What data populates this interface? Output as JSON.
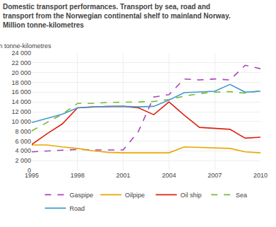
{
  "chart_data": {
    "type": "line",
    "title": "Domestic transport performances. Transport by sea, road and\ntransport from the Norwegian continental shelf to mainland Norway.\nMillion tonne-kilometres",
    "ylabel": "Million tonne-kilometres",
    "x": [
      1995,
      1996,
      1997,
      1998,
      1999,
      2000,
      2001,
      2002,
      2003,
      2004,
      2005,
      2006,
      2007,
      2008,
      2009,
      2010
    ],
    "series": [
      {
        "name": "Gaspipe",
        "color": "#AA44BB",
        "line_style": "dashed",
        "values": [
          3800,
          4000,
          4200,
          4300,
          4200,
          4150,
          4200,
          8000,
          15000,
          15500,
          18700,
          18500,
          18700,
          18500,
          21500,
          20800
        ]
      },
      {
        "name": "Oilpipe",
        "color": "#E8A800",
        "line_style": "solid",
        "values": [
          5200,
          5200,
          4800,
          4500,
          4000,
          3700,
          3600,
          3600,
          3600,
          3600,
          4800,
          4700,
          4600,
          4500,
          3800,
          3600
        ]
      },
      {
        "name": "Oil ship",
        "color": "#DD2211",
        "line_style": "solid",
        "values": [
          5300,
          7500,
          9500,
          12800,
          13000,
          13100,
          13100,
          12800,
          11400,
          14000,
          11300,
          8800,
          8600,
          8400,
          6600,
          6800
        ]
      },
      {
        "name": "Sea",
        "color": "#77BB33",
        "line_style": "dashed",
        "values": [
          8100,
          9800,
          11500,
          13700,
          13700,
          13900,
          13900,
          14000,
          14100,
          14500,
          15200,
          15700,
          16000,
          16100,
          15800,
          16300
        ]
      },
      {
        "name": "Road",
        "color": "#4499CC",
        "line_style": "solid",
        "values": [
          9800,
          10600,
          11500,
          12800,
          13000,
          13100,
          13100,
          13000,
          13100,
          14400,
          15900,
          16100,
          16200,
          17600,
          16000,
          16200
        ]
      }
    ],
    "xlim": [
      1995,
      2010
    ],
    "xticks": [
      1995,
      1998,
      2001,
      2004,
      2007,
      2010
    ],
    "ylim": [
      0,
      24000
    ],
    "yticks": [
      0,
      {
        "value": 2000,
        "label": "2 000"
      },
      {
        "value": 4000,
        "label": "4 000"
      },
      {
        "value": 6000,
        "label": "6 000"
      },
      {
        "value": 8000,
        "label": "8 000"
      },
      {
        "value": 10000,
        "label": "10 000"
      },
      {
        "value": 12000,
        "label": "12 000"
      },
      {
        "value": 14000,
        "label": "14 000"
      },
      {
        "value": 16000,
        "label": "16 000"
      },
      {
        "value": 18000,
        "label": "18 000"
      },
      {
        "value": 20000,
        "label": "20 000"
      },
      {
        "value": 22000,
        "label": "22 000"
      },
      {
        "value": 24000,
        "label": "24 000"
      }
    ],
    "grid": true,
    "legend": "bottom"
  }
}
